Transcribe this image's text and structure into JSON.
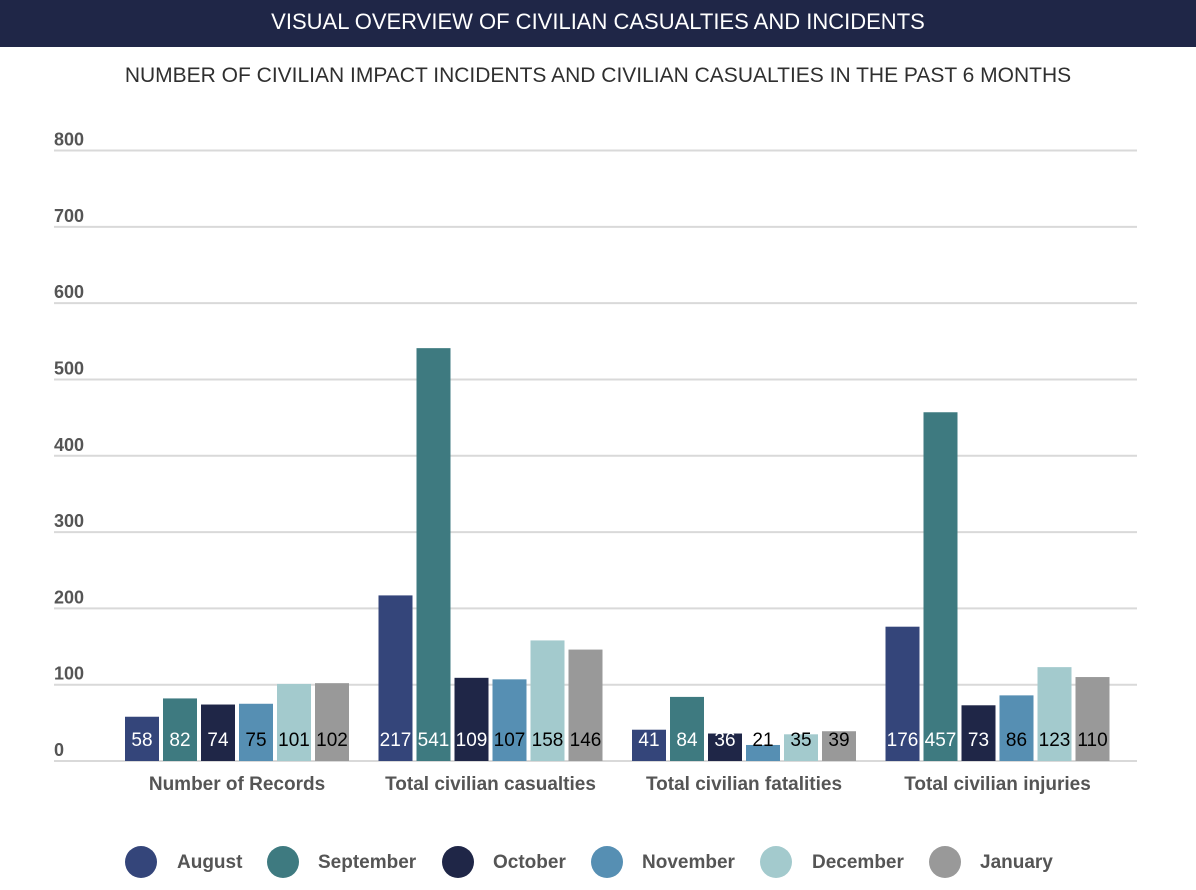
{
  "header": {
    "banner_title": "VISUAL OVERVIEW OF CIVILIAN CASUALTIES AND INCIDENTS"
  },
  "chart_data": {
    "type": "bar",
    "title": "NUMBER OF CIVILIAN IMPACT INCIDENTS AND CIVILIAN CASUALTIES IN THE PAST 6 MONTHS",
    "xlabel": "",
    "ylabel": "",
    "ylim": [
      0,
      800
    ],
    "yticks": [
      0,
      100,
      200,
      300,
      400,
      500,
      600,
      700,
      800
    ],
    "grid": true,
    "legend_position": "bottom",
    "categories": [
      "Number of Records",
      "Total civilian casualties",
      "Total civilian fatalities",
      "Total civilian injuries"
    ],
    "series": [
      {
        "name": "August",
        "color": "#34457a",
        "label_color": "#ffffff",
        "values": [
          58,
          217,
          41,
          176
        ]
      },
      {
        "name": "September",
        "color": "#3e7a80",
        "label_color": "#ffffff",
        "values": [
          82,
          541,
          84,
          457
        ]
      },
      {
        "name": "October",
        "color": "#1f2647",
        "label_color": "#ffffff",
        "values": [
          74,
          109,
          36,
          73
        ]
      },
      {
        "name": "November",
        "color": "#568fb3",
        "label_color": "#000000",
        "values": [
          75,
          107,
          21,
          86
        ]
      },
      {
        "name": "December",
        "color": "#a3cacd",
        "label_color": "#000000",
        "values": [
          101,
          158,
          35,
          123
        ]
      },
      {
        "name": "January",
        "color": "#999999",
        "label_color": "#000000",
        "values": [
          102,
          146,
          39,
          110
        ]
      }
    ]
  }
}
